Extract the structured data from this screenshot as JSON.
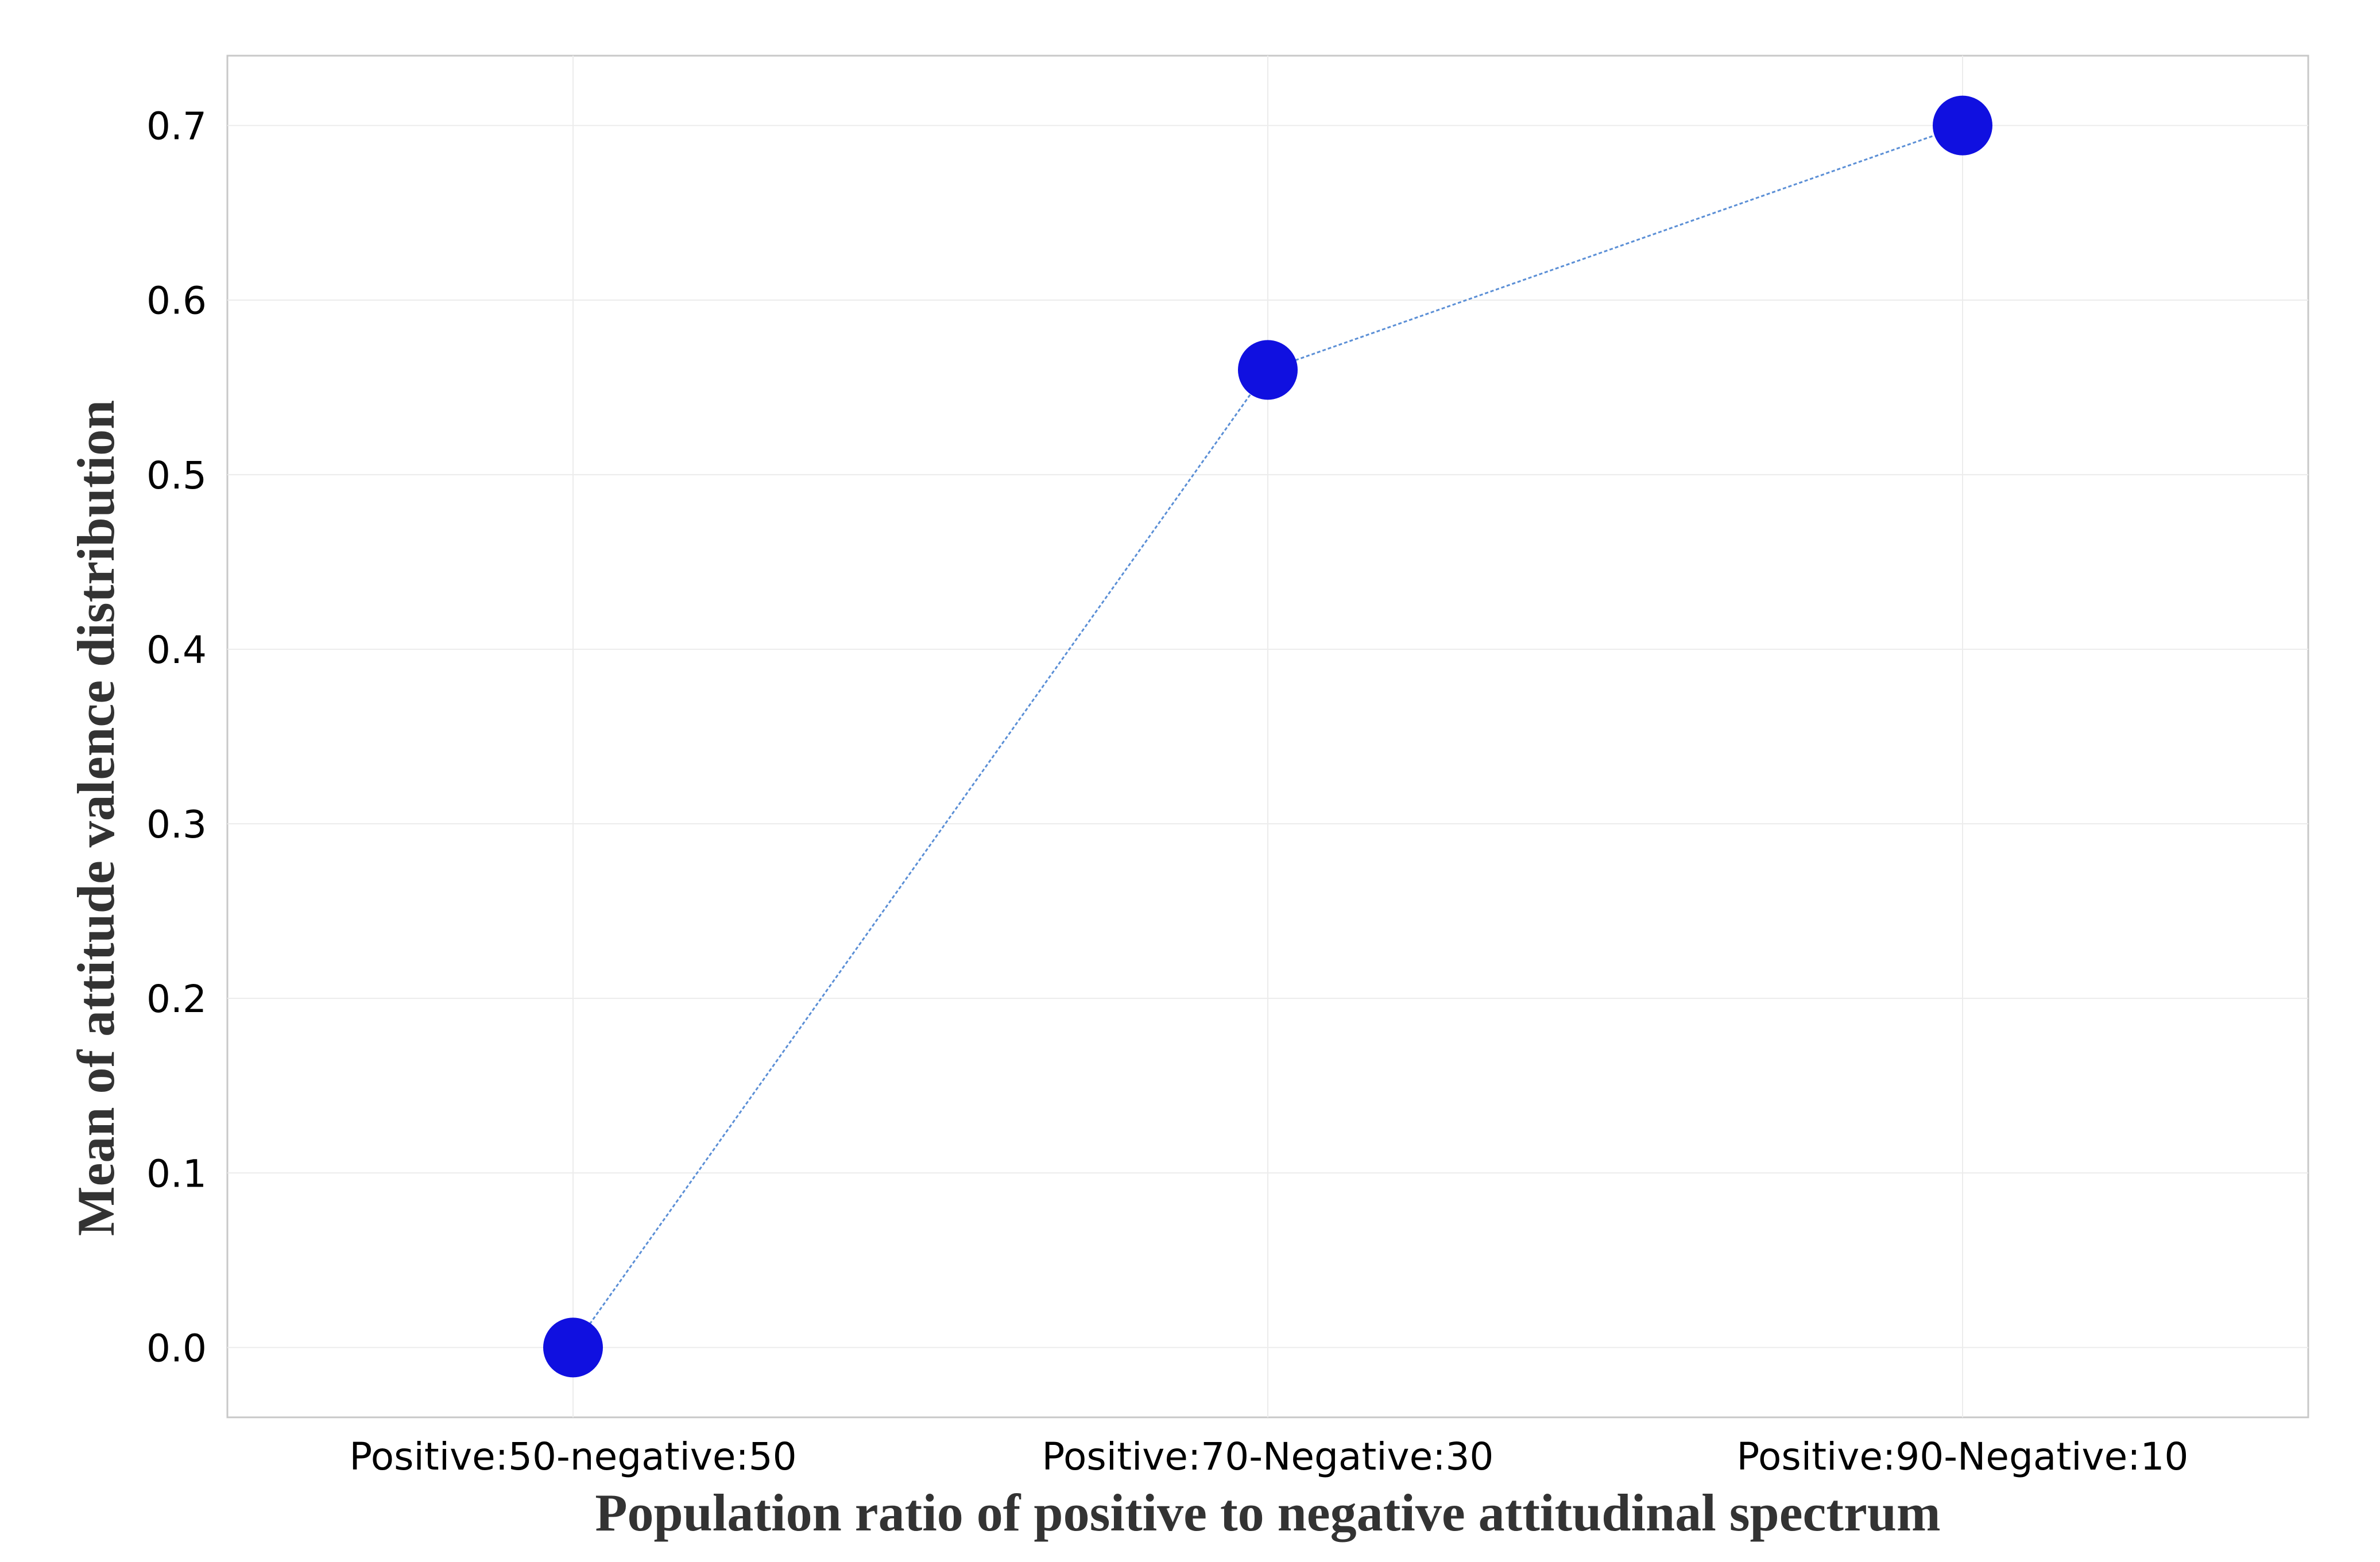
{
  "chart_data": {
    "type": "line",
    "xlabel": "Population ratio of positive to negative attitudinal spectrum",
    "ylabel": "Mean of attitude valence distribution",
    "categories": [
      "Positive:50-negative:50",
      "Positive:70-Negative:30",
      "Positive:90-Negative:10"
    ],
    "series": [
      {
        "values": [
          0.0,
          0.56,
          0.7
        ]
      }
    ],
    "ylim": [
      -0.04,
      0.74
    ],
    "yticks": [
      "0.0",
      "0.1",
      "0.2",
      "0.3",
      "0.4",
      "0.5",
      "0.6",
      "0.7"
    ],
    "grid": true,
    "legend": "none",
    "colors": {
      "marker": "#1010e0",
      "line": "#5b8fd6",
      "grid": "#ececec",
      "frame": "#c8c8c8"
    }
  }
}
